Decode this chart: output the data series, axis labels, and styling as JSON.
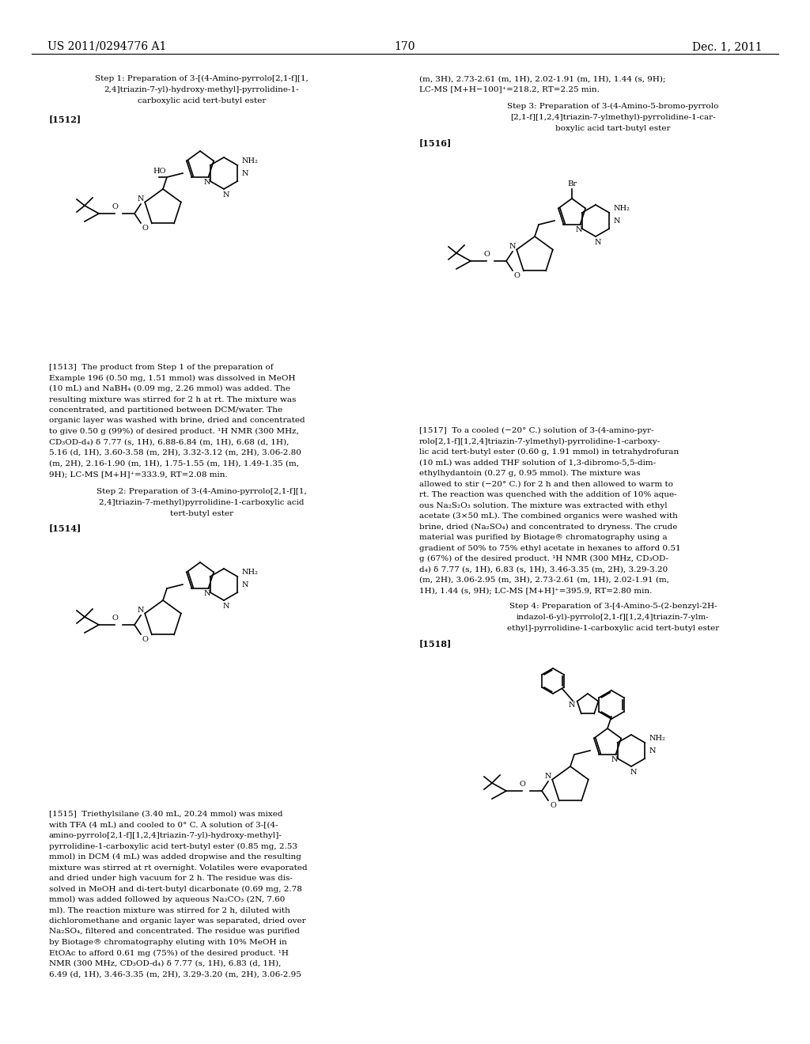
{
  "page_number": "170",
  "left_header": "US 2011/0294776 A1",
  "right_header": "Dec. 1, 2011",
  "background_color": "#ffffff",
  "text_color": "#000000",
  "figsize": [
    10.24,
    13.2
  ],
  "dpi": 100
}
